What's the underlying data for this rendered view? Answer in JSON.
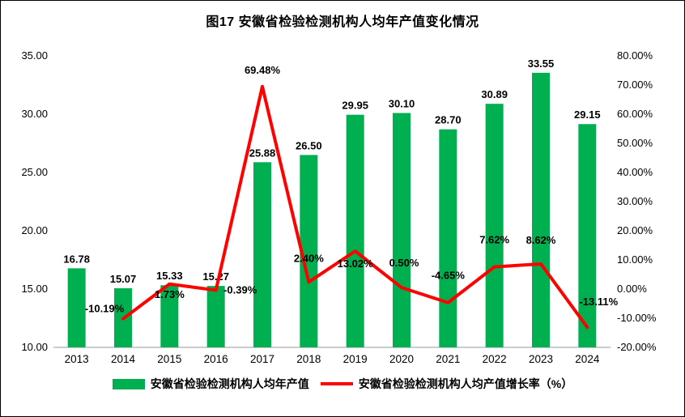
{
  "title": "图17 安徽省检验检测机构人均年产值变化情况",
  "colors": {
    "bar": "#00B050",
    "line": "#FF0000",
    "axis_line": "#999999",
    "text": "#000000"
  },
  "chart_data": {
    "type": "bar",
    "subtype": "bar+line combo",
    "title": "图17 安徽省检验检测机构人均年产值变化情况",
    "categories": [
      "2013",
      "2014",
      "2015",
      "2016",
      "2017",
      "2018",
      "2019",
      "2020",
      "2021",
      "2022",
      "2023",
      "2024"
    ],
    "series": [
      {
        "name": "安徽省检验检测机构人均年产值",
        "type": "bar",
        "axis": "left",
        "color": "#00B050",
        "values": [
          16.78,
          15.07,
          15.33,
          15.27,
          25.88,
          26.5,
          29.95,
          30.1,
          28.7,
          30.89,
          33.55,
          29.15
        ],
        "labels": [
          "16.78",
          "15.07",
          "15.33",
          "15.27",
          "25.88",
          "26.50",
          "29.95",
          "30.10",
          "28.70",
          "30.89",
          "33.55",
          "29.15"
        ]
      },
      {
        "name": "安徽省检验检测机构人均产值增长率（%）",
        "type": "line",
        "axis": "right",
        "color": "#FF0000",
        "values": [
          null,
          -10.19,
          1.73,
          -0.39,
          69.48,
          2.4,
          13.02,
          0.5,
          -4.65,
          7.62,
          8.62,
          -13.11
        ],
        "labels": [
          "",
          "-10.19%",
          "1.73%",
          "-0.39%",
          "69.48%",
          "2.40%",
          "13.02%",
          "0.50%",
          "-4.65%",
          "7.62%",
          "8.62%",
          "-13.11%"
        ]
      }
    ],
    "left_axis": {
      "min": 10,
      "max": 35,
      "ticks": [
        "35.00",
        "30.00",
        "25.00",
        "20.00",
        "15.00",
        "10.00"
      ]
    },
    "right_axis": {
      "min": -20,
      "max": 80,
      "ticks": [
        "80.00%",
        "70.00%",
        "60.00%",
        "50.00%",
        "40.00%",
        "30.00%",
        "20.00%",
        "10.00%",
        "0.00%",
        "-10.00%",
        "-20.00%"
      ]
    },
    "grid": false,
    "legend_position": "bottom"
  }
}
